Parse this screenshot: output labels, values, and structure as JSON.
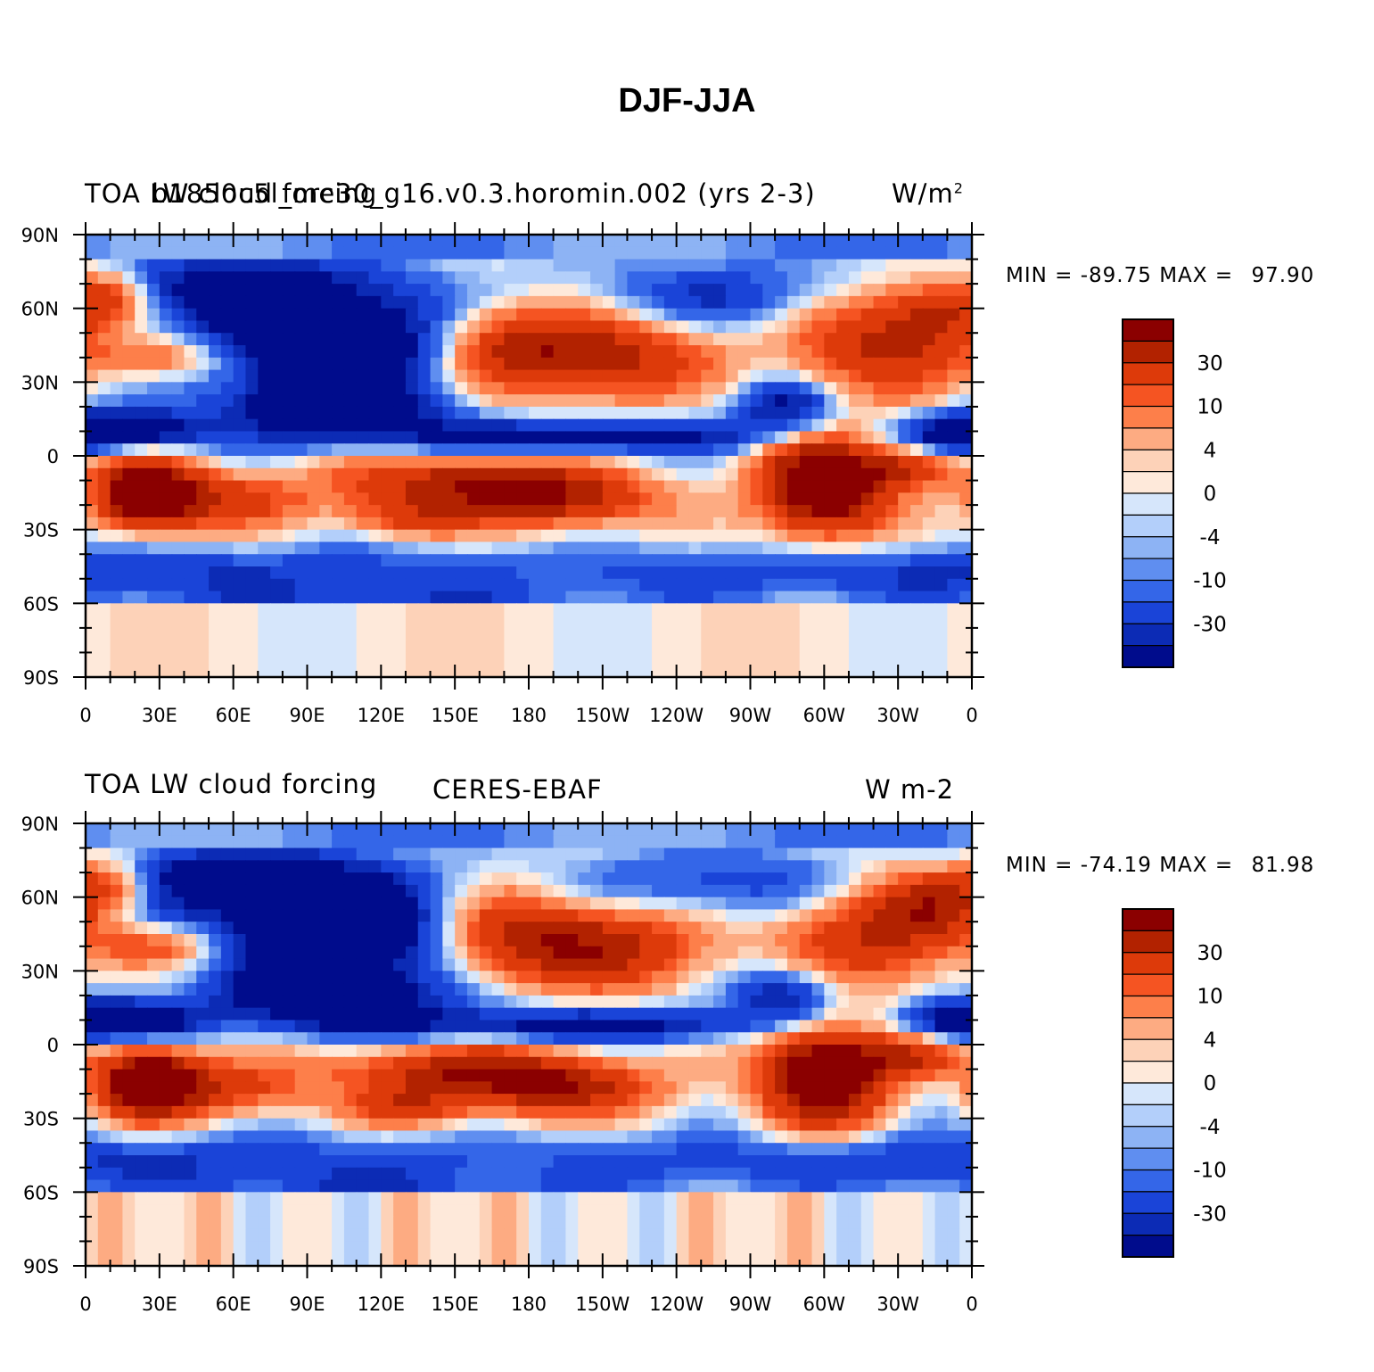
{
  "page": {
    "title": "DJF-JJA"
  },
  "panels": [
    {
      "left_string": "TOA LW cloud forcing",
      "center_string": "b1850c5l_me30_g16.v0.3.horomin.002 (yrs 2-3)",
      "right_string": "W/m",
      "right_string_superscript": "2",
      "min_label": "MIN =",
      "min_value": "-89.75",
      "max_label": "MAX =",
      "max_value": "97.90",
      "field": "model"
    },
    {
      "left_string": "TOA LW cloud forcing",
      "center_string": "CERES-EBAF",
      "right_string": "W m-2",
      "right_string_superscript": "",
      "min_label": "MIN =",
      "min_value": "-74.19",
      "max_label": "MAX =",
      "max_value": "81.98",
      "field": "obs"
    }
  ],
  "axes": {
    "lat_labels": [
      "90N",
      "60N",
      "30N",
      "0",
      "30S",
      "60S",
      "90S"
    ],
    "lon_labels": [
      "0",
      "30E",
      "60E",
      "90E",
      "120E",
      "150E",
      "180",
      "150W",
      "120W",
      "90W",
      "60W",
      "30W",
      "0"
    ]
  },
  "colorbar": {
    "colors": [
      "#8b0000",
      "#b22200",
      "#dd3a0a",
      "#f55422",
      "#fd7f4a",
      "#fdab82",
      "#fdd2b8",
      "#fee9da",
      "#d6e6fb",
      "#b3cffa",
      "#8db3f4",
      "#5f8ef0",
      "#3466e8",
      "#1a44d8",
      "#0c2bb5",
      "#000c8c"
    ],
    "labels": [
      "30",
      "10",
      "4",
      "0",
      "-4",
      "-10",
      "-30"
    ]
  },
  "chart_data": {
    "type": "heatmap",
    "title": "DJF-JJA",
    "variable": "TOA LW cloud forcing",
    "panels": [
      {
        "name": "b1850c5l_me30_g16.v0.3.horomin.002 (yrs 2-3)",
        "units": "W/m2",
        "min": -89.75,
        "max": 97.9
      },
      {
        "name": "CERES-EBAF",
        "units": "W m-2",
        "min": -74.19,
        "max": 81.98
      }
    ],
    "x_range": [
      0,
      360
    ],
    "y_range": [
      -90,
      90
    ],
    "contour_levels": [
      -40,
      -30,
      -20,
      -15,
      -10,
      -6,
      -4,
      -2,
      0,
      2,
      4,
      6,
      10,
      15,
      20,
      30,
      40
    ],
    "legend": "right"
  }
}
